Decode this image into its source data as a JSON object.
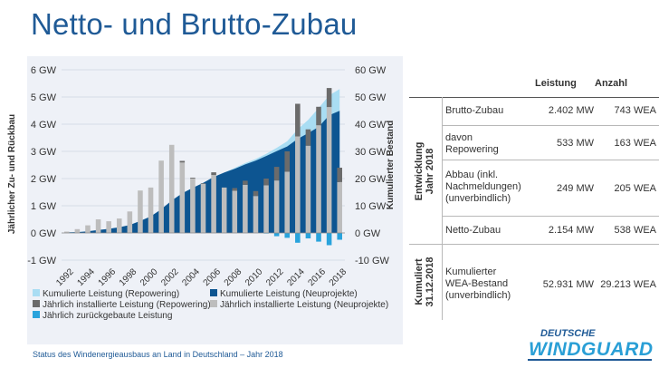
{
  "title": "Netto- und Brutto-Zubau",
  "footer": "Status des Windenergieausbaus an Land in Deutschland – Jahr 2018",
  "logo": {
    "line1": "DEUTSCHE",
    "line2": "WINDGUARD"
  },
  "colors": {
    "kum_repowering": "#a9ddf3",
    "kum_neu": "#0d5591",
    "jahr_repowering": "#6b6b6b",
    "jahr_neu": "#bdbdbd",
    "rueckbau": "#29a3dc"
  },
  "chart_data": {
    "type": "bar",
    "ylabel_left": "Jährlicher Zu- und Rückbau",
    "ylabel_right": "Kumulierter Bestand",
    "left_ticks": [
      "-1 GW",
      "0 GW",
      "1 GW",
      "2 GW",
      "3 GW",
      "4 GW",
      "5 GW",
      "6 GW"
    ],
    "right_ticks": [
      "-10 GW",
      "0 GW",
      "10 GW",
      "20 GW",
      "30 GW",
      "40 GW",
      "50 GW",
      "60 GW"
    ],
    "ylim_left": [
      -1,
      6
    ],
    "ylim_right": [
      -10,
      60
    ],
    "x_tick_labels": [
      "1992",
      "1994",
      "1996",
      "1998",
      "2000",
      "2002",
      "2004",
      "2006",
      "2008",
      "2010",
      "2012",
      "2014",
      "2016",
      "2018"
    ],
    "years": [
      1992,
      1993,
      1994,
      1995,
      1996,
      1997,
      1998,
      1999,
      2000,
      2001,
      2002,
      2003,
      2004,
      2005,
      2006,
      2007,
      2008,
      2009,
      2010,
      2011,
      2012,
      2013,
      2014,
      2015,
      2016,
      2017,
      2018
    ],
    "series": [
      {
        "name": "Kumulierte Leistung (Repowering)",
        "kind": "area",
        "axis": "right",
        "values": [
          0.2,
          0.3,
          0.6,
          1.1,
          1.5,
          2.1,
          2.9,
          4.4,
          6.1,
          8.7,
          11.9,
          14.6,
          16.6,
          18.4,
          20.6,
          22.2,
          23.9,
          25.7,
          27.2,
          29.1,
          31.3,
          33.7,
          38.1,
          41.6,
          45.9,
          50.6,
          52.9
        ]
      },
      {
        "name": "Kumulierte Leistung (Neuprojekte)",
        "kind": "area",
        "axis": "right",
        "values": [
          0.2,
          0.3,
          0.6,
          1.1,
          1.5,
          2.1,
          2.9,
          4.4,
          6.1,
          8.7,
          11.9,
          14.6,
          16.6,
          18.4,
          20.6,
          22.2,
          23.6,
          25.2,
          26.6,
          28.3,
          30.1,
          31.8,
          34.6,
          36.7,
          39.0,
          43.3,
          44.9
        ]
      },
      {
        "name": "Jährlich installierte Leistung (Repowering)",
        "kind": "bar",
        "axis": "left",
        "values": [
          0,
          0,
          0,
          0,
          0,
          0,
          0,
          0,
          0,
          0,
          0,
          0.06,
          0.03,
          0.02,
          0.1,
          0,
          0.1,
          0.15,
          0.18,
          0.25,
          0.5,
          0.75,
          1.2,
          0.6,
          0.68,
          0.7,
          0.53
        ]
      },
      {
        "name": "Jährlich installierte Leistung (Neuprojekte)",
        "kind": "bar",
        "axis": "left",
        "values": [
          0.05,
          0.14,
          0.28,
          0.5,
          0.43,
          0.53,
          0.79,
          1.56,
          1.67,
          2.66,
          3.24,
          2.59,
          2.0,
          1.81,
          2.13,
          1.67,
          1.55,
          1.77,
          1.36,
          1.75,
          1.93,
          2.25,
          3.55,
          3.21,
          3.96,
          4.63,
          1.87
        ]
      },
      {
        "name": "Jährlich zurückgebaute Leistung",
        "kind": "bar",
        "axis": "left",
        "values": [
          0,
          0,
          0,
          0,
          0,
          0,
          0,
          0,
          0,
          0,
          0,
          0,
          0,
          0,
          0,
          0,
          0,
          0,
          0,
          -0.02,
          -0.12,
          -0.18,
          -0.36,
          -0.2,
          -0.32,
          -0.45,
          -0.25
        ]
      }
    ],
    "legend": [
      {
        "label": "Kumulierte Leistung (Repowering)",
        "color": "#a9ddf3"
      },
      {
        "label": "Kumulierte Leistung (Neuprojekte)",
        "color": "#0d5591"
      },
      {
        "label": "Jährlich installierte Leistung (Repowering)",
        "color": "#6b6b6b"
      },
      {
        "label": "Jährlich installierte Leistung (Neuprojekte)",
        "color": "#bdbdbd"
      },
      {
        "label": "Jährlich zurückgebaute Leistung",
        "color": "#29a3dc"
      }
    ],
    "grid": true,
    "legend_placement": "bottom"
  },
  "table": {
    "headers": {
      "leistung": "Leistung",
      "anzahl": "Anzahl"
    },
    "group1_label": [
      "Entwicklung",
      "Jahr 2018"
    ],
    "group2_label": [
      "Kumuliert",
      "31.12.2018"
    ],
    "rows": [
      {
        "label": [
          "Brutto-Zubau"
        ],
        "leistung": "2.402 MW",
        "anzahl": "743 WEA"
      },
      {
        "label": [
          "davon",
          "Repowering"
        ],
        "leistung": "533 MW",
        "anzahl": "163 WEA"
      },
      {
        "label": [
          "Abbau (inkl.",
          "Nachmeldungen)",
          "(unverbindlich)"
        ],
        "leistung": "249 MW",
        "anzahl": "205 WEA"
      },
      {
        "label": [
          "Netto-Zubau"
        ],
        "leistung": "2.154 MW",
        "anzahl": "538 WEA"
      },
      {
        "label": [
          "Kumulierter",
          "WEA-Bestand",
          "(unverbindlich)"
        ],
        "leistung": "52.931 MW",
        "anzahl": "29.213 WEA"
      }
    ]
  }
}
